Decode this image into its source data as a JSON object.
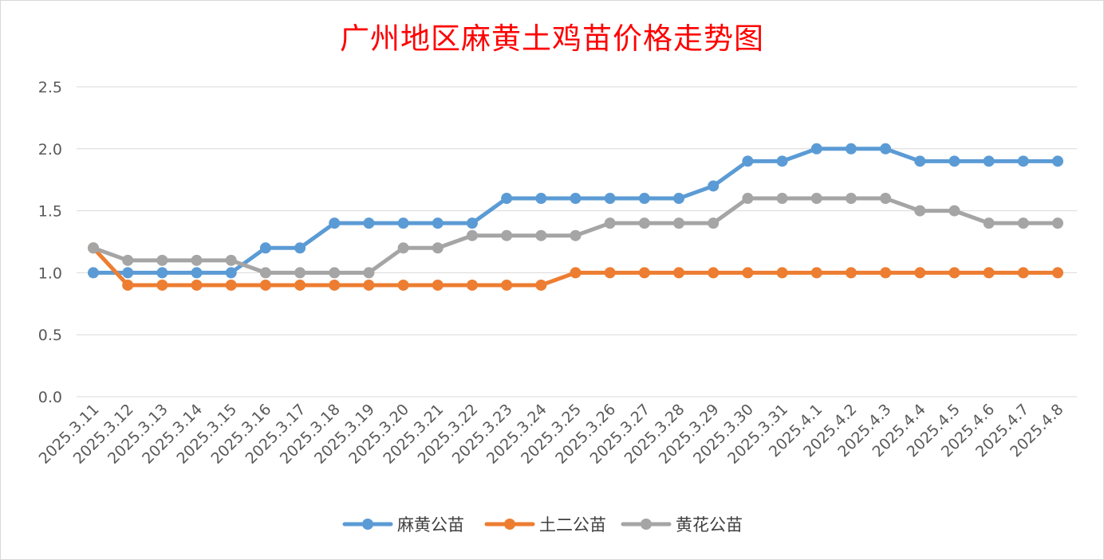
{
  "chart_data": {
    "type": "line",
    "title": "广州地区麻黄土鸡苗价格走势图",
    "xlabel": "",
    "ylabel": "",
    "ylim": [
      0,
      2.5
    ],
    "y_ticks": [
      "0.0",
      "0.5",
      "1.0",
      "1.5",
      "2.0",
      "2.5"
    ],
    "grid": "horizontal",
    "legend_position": "bottom",
    "categories": [
      "2025.3.11",
      "2025.3.12",
      "2025.3.13",
      "2025.3.14",
      "2025.3.15",
      "2025.3.16",
      "2025.3.17",
      "2025.3.18",
      "2025.3.19",
      "2025.3.20",
      "2025.3.21",
      "2025.3.22",
      "2025.3.23",
      "2025.3.24",
      "2025.3.25",
      "2025.3.26",
      "2025.3.27",
      "2025.3.28",
      "2025.3.29",
      "2025.3.30",
      "2025.3.31",
      "2025.4.1",
      "2025.4.2",
      "2025.4.3",
      "2025.4.4",
      "2025.4.5",
      "2025.4.6",
      "2025.4.7",
      "2025.4.8"
    ],
    "series": [
      {
        "name": "麻黄公苗",
        "color": "#5b9bd5",
        "values": [
          1.0,
          1.0,
          1.0,
          1.0,
          1.0,
          1.2,
          1.2,
          1.4,
          1.4,
          1.4,
          1.4,
          1.4,
          1.6,
          1.6,
          1.6,
          1.6,
          1.6,
          1.6,
          1.7,
          1.9,
          1.9,
          2.0,
          2.0,
          2.0,
          1.9,
          1.9,
          1.9,
          1.9,
          1.9
        ]
      },
      {
        "name": "土二公苗",
        "color": "#ed7d31",
        "values": [
          1.2,
          0.9,
          0.9,
          0.9,
          0.9,
          0.9,
          0.9,
          0.9,
          0.9,
          0.9,
          0.9,
          0.9,
          0.9,
          0.9,
          1.0,
          1.0,
          1.0,
          1.0,
          1.0,
          1.0,
          1.0,
          1.0,
          1.0,
          1.0,
          1.0,
          1.0,
          1.0,
          1.0,
          1.0
        ]
      },
      {
        "name": "黄花公苗",
        "color": "#a5a5a5",
        "values": [
          1.2,
          1.1,
          1.1,
          1.1,
          1.1,
          1.0,
          1.0,
          1.0,
          1.0,
          1.2,
          1.2,
          1.3,
          1.3,
          1.3,
          1.3,
          1.4,
          1.4,
          1.4,
          1.4,
          1.6,
          1.6,
          1.6,
          1.6,
          1.6,
          1.5,
          1.5,
          1.4,
          1.4,
          1.4
        ]
      }
    ]
  }
}
